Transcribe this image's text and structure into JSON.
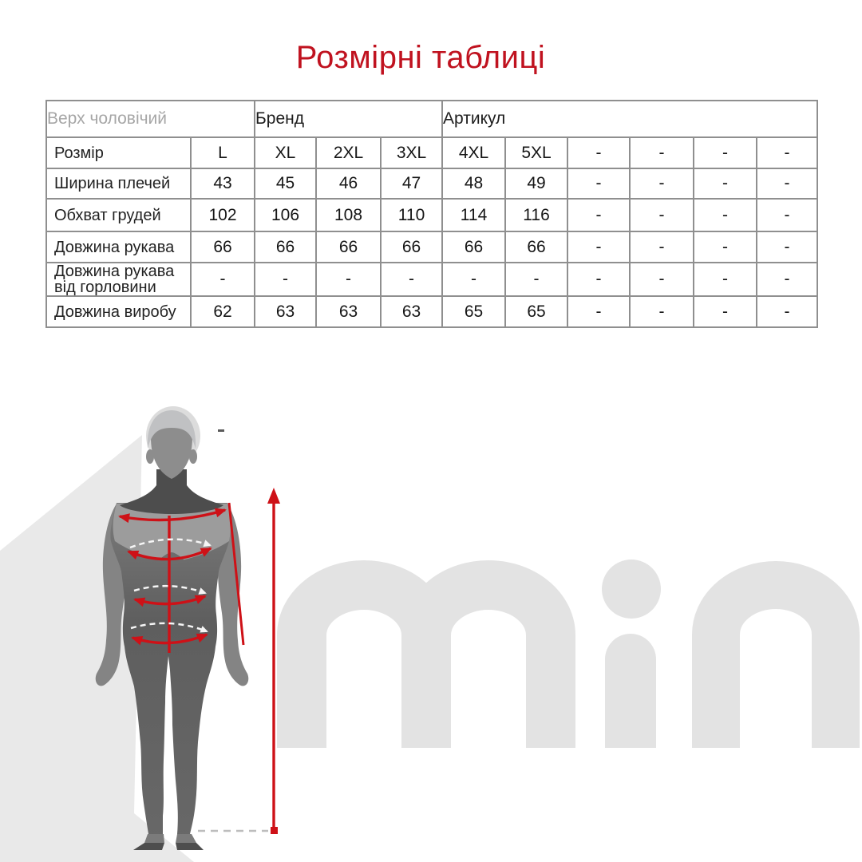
{
  "page": {
    "title": "Розмірні таблиці"
  },
  "colors": {
    "accent_red": "#c0121f",
    "arrow_red": "#ce1117",
    "table_border": "#8f8f8f",
    "muted_header": "#a6a6a6",
    "watermark_gray": "#e3e3e3",
    "wedge_gray": "#e9e9e9"
  },
  "size_table": {
    "category_header": "Верх чоловічий",
    "brand_header": "Бренд",
    "article_header": "Артикул",
    "rows": [
      {
        "label": "Розмір",
        "values": [
          "L",
          "XL",
          "2XL",
          "3XL",
          "4XL",
          "5XL",
          "-",
          "-",
          "-",
          "-"
        ]
      },
      {
        "label": "Ширина плечей",
        "values": [
          "43",
          "45",
          "46",
          "47",
          "48",
          "49",
          "-",
          "-",
          "-",
          "-"
        ]
      },
      {
        "label": "Обхват грудей",
        "values": [
          "102",
          "106",
          "108",
          "110",
          "114",
          "116",
          "-",
          "-",
          "-",
          "-"
        ]
      },
      {
        "label": "Довжина рукава",
        "values": [
          "66",
          "66",
          "66",
          "66",
          "66",
          "66",
          "-",
          "-",
          "-",
          "-"
        ]
      },
      {
        "label": "Довжина рукава від горловини",
        "values": [
          "-",
          "-",
          "-",
          "-",
          "-",
          "-",
          "-",
          "-",
          "-",
          "-"
        ]
      },
      {
        "label": "Довжина виробу",
        "values": [
          "62",
          "63",
          "63",
          "63",
          "65",
          "65",
          "-",
          "-",
          "-",
          "-"
        ]
      }
    ]
  },
  "watermark": {
    "text": "min"
  }
}
